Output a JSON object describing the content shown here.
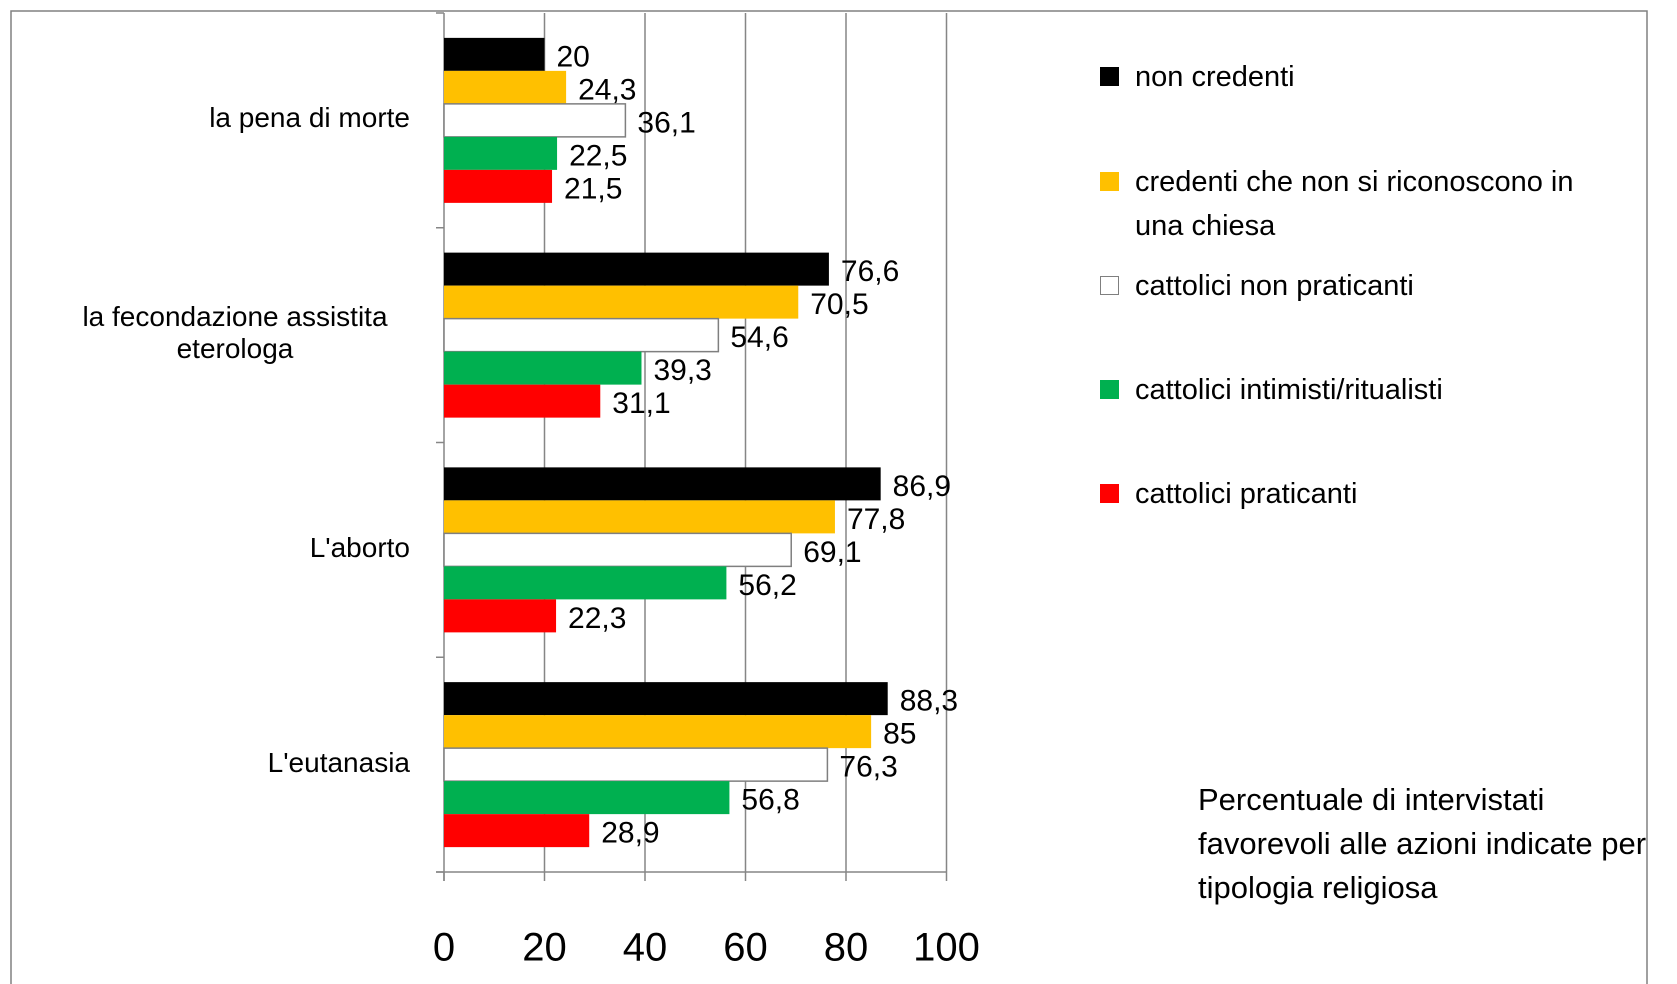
{
  "chart_data": {
    "type": "hbar",
    "categories": [
      "la pena di morte",
      "la fecondazione assistita eterologa",
      "L'aborto",
      "L'eutanasia"
    ],
    "series": [
      {
        "name": "non credenti",
        "color": "#000000",
        "values": [
          20,
          76.6,
          86.9,
          88.3
        ],
        "value_labels": [
          "20",
          "76,6",
          "86,9",
          "88,3"
        ]
      },
      {
        "name": "credenti che non si riconoscono in una chiesa",
        "color": "#ffc000",
        "values": [
          24.3,
          70.5,
          77.8,
          85
        ],
        "value_labels": [
          "24,3",
          "70,5",
          "77,8",
          "85"
        ]
      },
      {
        "name": "cattolici non praticanti",
        "color": "#ffffff",
        "values": [
          36.1,
          54.6,
          69.1,
          76.3
        ],
        "value_labels": [
          "36,1",
          "54,6",
          "69,1",
          "76,3"
        ]
      },
      {
        "name": "cattolici intimisti/ritualisti",
        "color": "#00b050",
        "values": [
          22.5,
          39.3,
          56.2,
          56.8
        ],
        "value_labels": [
          "22,5",
          "39,3",
          "56,2",
          "56,8"
        ]
      },
      {
        "name": "cattolici praticanti",
        "color": "#ff0000",
        "values": [
          21.5,
          31.1,
          22.3,
          28.9
        ],
        "value_labels": [
          "21,5",
          "31,1",
          "22,3",
          "28,9"
        ]
      }
    ],
    "xlim": [
      0,
      100
    ],
    "xticks": [
      0,
      20,
      40,
      60,
      80,
      100
    ],
    "grid": true,
    "legend": "right",
    "annotation": "Percentuale di intervistati favorevoli alle azioni indicate per tipologia religiosa"
  }
}
